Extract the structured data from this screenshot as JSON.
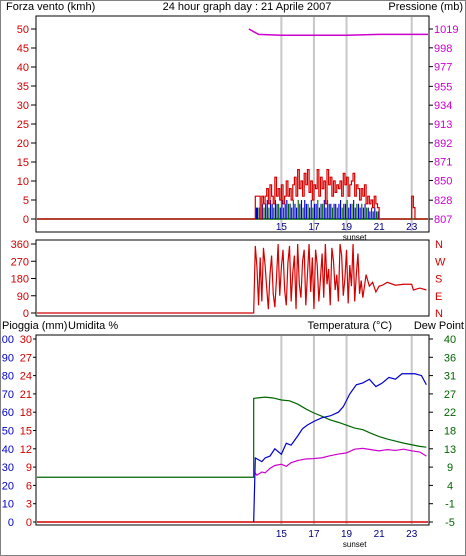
{
  "colors": {
    "wind": "#d40000",
    "pressure": "#cc00cc",
    "humidity": "#0000cc",
    "temperature": "#006600",
    "dew_point": "#cc00cc",
    "rain": "#d40000",
    "direction": "#d40000",
    "avg_wind": "#0000cc",
    "gust": "#006600",
    "vgrid": "#c8c8c8",
    "text": "#000000",
    "axis_blue": "#000080"
  },
  "chart_data": [
    {
      "type": "line",
      "id": "wind-pressure",
      "title": "24 hour graph day : 21 Aprile 2007",
      "left_axis_label": "Forza vento (kmh)",
      "right_axis_label": "Pressione (mb)",
      "left_ticks": [
        "50",
        "45",
        "40",
        "35",
        "30",
        "25",
        "20",
        "15",
        "10",
        "5",
        "0"
      ],
      "right_ticks": [
        "1019",
        "998",
        "977",
        "955",
        "934",
        "913",
        "892",
        "871",
        "850",
        "828",
        "807"
      ],
      "ylim_left": [
        0,
        50
      ],
      "ylim_right": [
        807,
        1019
      ],
      "xlim": [
        0,
        24
      ],
      "x_ticks": [
        "15",
        "17",
        "19",
        "21",
        "23"
      ],
      "x_tick_values": [
        15,
        17,
        19,
        21,
        23
      ],
      "v_gridlines": [
        15,
        17,
        19,
        23
      ],
      "annotation": "sunset",
      "annotation_x": 19.5,
      "wind_series_hours": [
        0,
        13.3,
        13.4,
        13.6,
        13.7,
        13.8,
        13.9,
        14.0,
        14.1,
        14.2,
        14.3,
        14.4,
        14.5,
        14.6,
        14.7,
        14.8,
        14.9,
        15.0,
        15.1,
        15.2,
        15.3,
        15.4,
        15.5,
        15.6,
        15.7,
        15.8,
        15.9,
        16.0,
        16.1,
        16.2,
        16.3,
        16.4,
        16.5,
        16.6,
        16.7,
        16.8,
        16.9,
        17.0,
        17.1,
        17.2,
        17.3,
        17.4,
        17.5,
        17.6,
        17.7,
        17.8,
        17.9,
        18.0,
        18.1,
        18.2,
        18.3,
        18.4,
        18.5,
        18.6,
        18.7,
        18.8,
        18.9,
        19.0,
        19.1,
        19.2,
        19.3,
        19.4,
        19.5,
        19.6,
        19.7,
        19.8,
        19.9,
        20.0,
        20.1,
        20.2,
        20.3,
        20.4,
        20.5,
        20.6,
        20.7,
        20.8,
        20.9,
        21.0,
        22.9,
        23.0,
        23.1,
        23.2,
        24.0
      ],
      "wind_gust_kmh": [
        0,
        0,
        6,
        6,
        0,
        6,
        4,
        6,
        8,
        4,
        9,
        6,
        4,
        11,
        6,
        8,
        5,
        9,
        4,
        6,
        10,
        6,
        8,
        5,
        9,
        11,
        6,
        13,
        8,
        10,
        6,
        12,
        9,
        13,
        7,
        10,
        5,
        9,
        8,
        13,
        6,
        11,
        8,
        10,
        4,
        13,
        9,
        11,
        6,
        10,
        7,
        9,
        8,
        10,
        6,
        12,
        9,
        11,
        6,
        9,
        10,
        12,
        6,
        9,
        8,
        5,
        8,
        6,
        9,
        4,
        6,
        4,
        5,
        3,
        6,
        4,
        3,
        0,
        0,
        6,
        3,
        0,
        0
      ],
      "wind_avg_kmh": [
        0,
        0,
        3,
        3,
        0,
        4,
        3,
        4,
        5,
        3,
        5,
        4,
        3,
        5,
        4,
        4,
        3,
        5,
        3,
        4,
        5,
        4,
        4,
        3,
        5,
        4,
        3,
        5,
        4,
        5,
        3,
        5,
        4,
        4,
        3,
        5,
        3,
        4,
        4,
        5,
        3,
        4,
        4,
        5,
        3,
        5,
        4,
        4,
        3,
        4,
        4,
        3,
        4,
        5,
        3,
        4,
        4,
        5,
        3,
        4,
        4,
        5,
        3,
        4,
        4,
        3,
        4,
        3,
        4,
        3,
        3,
        2,
        3,
        2,
        3,
        2,
        2,
        0,
        0,
        0,
        0,
        0,
        0
      ],
      "pressure_hours": [
        13.0,
        13.6,
        15.0,
        17.0,
        19.0,
        21.0,
        23.0,
        24.0
      ],
      "pressure_mb": [
        1019,
        1013,
        1012,
        1012,
        1012,
        1013,
        1013,
        1013
      ]
    },
    {
      "type": "line",
      "id": "wind-direction",
      "left_ticks": [
        "360",
        "270",
        "180",
        "90",
        "0"
      ],
      "right_ticks": [
        "N",
        "W",
        "S",
        "E",
        "N"
      ],
      "ylim": [
        0,
        360
      ],
      "xlim": [
        0,
        24
      ],
      "x_ticks": [],
      "direction_hours": [
        0,
        13.3,
        13.4,
        13.5,
        13.6,
        13.7,
        13.8,
        13.9,
        14.0,
        14.1,
        14.2,
        14.3,
        14.4,
        14.5,
        14.6,
        14.7,
        14.8,
        14.9,
        15.0,
        15.1,
        15.2,
        15.3,
        15.4,
        15.5,
        15.6,
        15.7,
        15.8,
        15.9,
        16.0,
        16.1,
        16.2,
        16.3,
        16.4,
        16.5,
        16.6,
        16.7,
        16.8,
        16.9,
        17.0,
        17.1,
        17.2,
        17.3,
        17.4,
        17.5,
        17.6,
        17.7,
        17.8,
        17.9,
        18.0,
        18.1,
        18.2,
        18.3,
        18.4,
        18.5,
        18.6,
        18.7,
        18.8,
        18.9,
        19.0,
        19.1,
        19.2,
        19.3,
        19.4,
        19.5,
        19.6,
        19.7,
        19.8,
        19.9,
        20.0,
        20.2,
        20.4,
        20.6,
        20.8,
        21.0,
        21.2,
        21.5,
        22.0,
        22.5,
        23.0,
        23.1,
        23.5,
        23.9
      ],
      "direction_deg": [
        0,
        0,
        350,
        240,
        40,
        290,
        60,
        340,
        250,
        130,
        20,
        200,
        300,
        100,
        30,
        180,
        360,
        90,
        240,
        330,
        120,
        40,
        260,
        350,
        60,
        210,
        300,
        20,
        360,
        150,
        80,
        270,
        330,
        40,
        200,
        360,
        110,
        290,
        20,
        330,
        250,
        60,
        180,
        310,
        80,
        360,
        150,
        230,
        40,
        340,
        270,
        120,
        200,
        60,
        360,
        300,
        90,
        180,
        330,
        50,
        250,
        140,
        360,
        60,
        200,
        310,
        100,
        170,
        80,
        200,
        140,
        160,
        110,
        140,
        145,
        160,
        145,
        150,
        150,
        120,
        130,
        120
      ]
    },
    {
      "type": "line",
      "id": "temp-humidity-rain",
      "left_axis_label_rain": "Pioggia (mm)",
      "left_axis_label_humidity": "Umidita %",
      "right_axis_label_temp": "Temperatura (°C)",
      "right_axis_label_dew": "Dew Point",
      "rain_ticks": [
        "30",
        "27",
        "24",
        "21",
        "18",
        "15",
        "12",
        "9",
        "6",
        "3",
        "0"
      ],
      "humidity_ticks": [
        "100",
        "90",
        "80",
        "70",
        "60",
        "50",
        "40",
        "30",
        "20",
        "10",
        "0"
      ],
      "temp_ticks": [
        "40",
        "36",
        "31",
        "27",
        "22",
        "18",
        "13",
        "9",
        "4",
        "-1",
        "-5"
      ],
      "ylim_humidity": [
        0,
        100
      ],
      "ylim_rain": [
        0,
        30
      ],
      "ylim_temp": [
        -5,
        40
      ],
      "xlim": [
        0,
        24
      ],
      "x_ticks": [
        "15",
        "17",
        "19",
        "21",
        "23"
      ],
      "x_tick_values": [
        15,
        17,
        19,
        21,
        23
      ],
      "v_gridlines": [
        15,
        17,
        19,
        23
      ],
      "annotation": "sunset",
      "annotation_x": 19.5,
      "humidity_hours": [
        13.3,
        13.4,
        13.6,
        13.8,
        14.0,
        14.3,
        14.6,
        15.0,
        15.3,
        15.6,
        16.0,
        16.3,
        16.6,
        17.0,
        17.5,
        18.0,
        18.5,
        18.8,
        19.2,
        19.6,
        20.0,
        20.4,
        20.8,
        21.2,
        21.6,
        22.0,
        22.4,
        22.8,
        23.2,
        23.6,
        23.9
      ],
      "humidity_pct": [
        0,
        35,
        34,
        33,
        35,
        36,
        40,
        37,
        43,
        42,
        47,
        51,
        53,
        55,
        57,
        58,
        60,
        63,
        70,
        75,
        76,
        78,
        74,
        76,
        79,
        78,
        81,
        81,
        81,
        80,
        75
      ],
      "temperature_hours": [
        0,
        13.3,
        13.3,
        13.5,
        14.0,
        14.5,
        15.0,
        15.5,
        16.0,
        16.5,
        17.0,
        17.5,
        18.0,
        18.5,
        19.0,
        19.5,
        20.0,
        20.5,
        21.0,
        21.5,
        22.0,
        22.5,
        23.0,
        23.5,
        23.9
      ],
      "temperature_c": [
        6.0,
        6.0,
        25.4,
        25.5,
        25.7,
        25.5,
        25.0,
        24.8,
        24.0,
        22.8,
        21.8,
        21.0,
        20.1,
        19.5,
        18.8,
        18.1,
        17.7,
        16.8,
        16.0,
        15.4,
        14.9,
        14.4,
        14.0,
        13.6,
        13.4
      ],
      "dew_hours": [
        13.3,
        13.5,
        13.8,
        14.0,
        14.3,
        14.6,
        15.0,
        15.3,
        15.6,
        16.0,
        16.5,
        17.0,
        17.5,
        18.0,
        18.5,
        19.0,
        19.5,
        20.0,
        20.5,
        21.0,
        21.5,
        22.0,
        22.5,
        23.0,
        23.5,
        23.9
      ],
      "dew_point_c": [
        7.5,
        6.5,
        7.3,
        7.1,
        8.2,
        8.9,
        9.2,
        8.7,
        9.6,
        10.1,
        10.5,
        10.6,
        10.8,
        11.3,
        11.7,
        12.0,
        12.9,
        13.1,
        12.8,
        12.5,
        12.8,
        12.6,
        12.9,
        12.5,
        12.2,
        11.2
      ],
      "rain_hours": [
        0,
        24
      ],
      "rain_mm": [
        0,
        0
      ]
    }
  ]
}
